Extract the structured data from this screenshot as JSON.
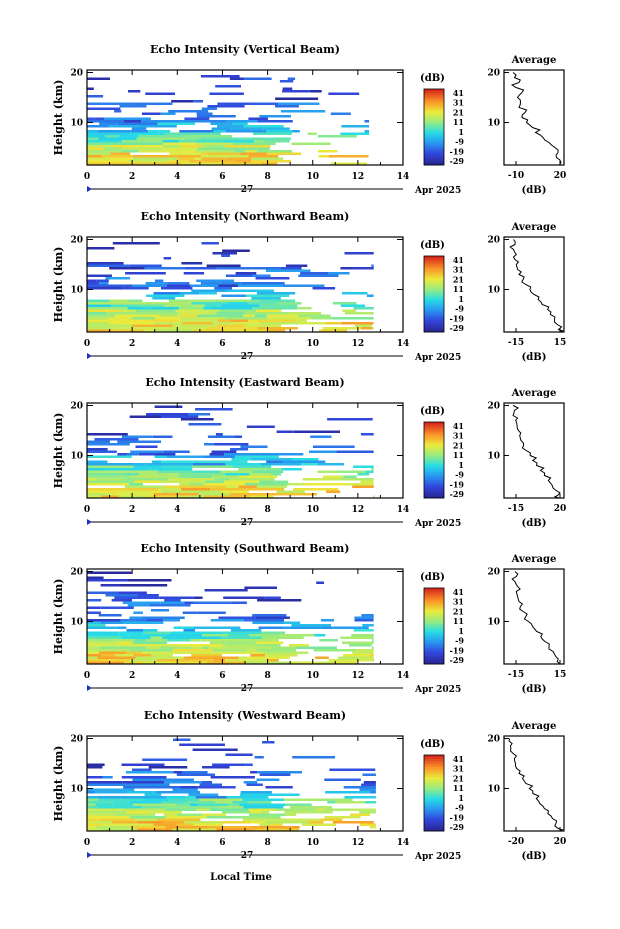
{
  "figure": {
    "x_axis_label": "Local Time",
    "date_suffix": "Apr 2025",
    "day_label": "27",
    "avg_xlabel": "(dB)",
    "avg_title": "Average"
  },
  "chart_data": [
    {
      "type": "heatmap",
      "title": "Echo Intensity (Vertical Beam)",
      "ylabel": "Height (km)",
      "xlabel": "Local Time",
      "xlim": [
        0,
        14
      ],
      "xticks": [
        "0",
        "2",
        "4",
        "6",
        "8",
        "10",
        "12",
        "14"
      ],
      "ylim": [
        1.5,
        20.5
      ],
      "yticks": [
        "10",
        "20"
      ],
      "colorbar": {
        "unit": "(dB)",
        "ticks": [
          "41",
          "31",
          "21",
          "11",
          "1",
          "-9",
          "-19",
          "-29"
        ],
        "range": [
          -29,
          41
        ]
      },
      "data_gaps_hours": [
        [
          9.3,
          9.7
        ],
        [
          11.3,
          12.1
        ],
        [
          12.5,
          14.0
        ]
      ],
      "data_end_hour": 12.5,
      "average": {
        "title": "Average",
        "xlabel": "(dB)",
        "xticks": [
          "-10",
          "20"
        ],
        "xlim": [
          -18,
          22
        ],
        "profile": [
          [
            1.5,
            19
          ],
          [
            2,
            20
          ],
          [
            3,
            17
          ],
          [
            4,
            18
          ],
          [
            5,
            16
          ],
          [
            6,
            12
          ],
          [
            7,
            8
          ],
          [
            8,
            3
          ],
          [
            9,
            1
          ],
          [
            10,
            -3
          ],
          [
            11,
            -6
          ],
          [
            12,
            -4
          ],
          [
            13,
            -8
          ],
          [
            14,
            -7
          ],
          [
            15,
            -9
          ],
          [
            16,
            -6
          ],
          [
            17,
            -10
          ],
          [
            18,
            -8
          ],
          [
            19,
            -11
          ],
          [
            20,
            -12
          ]
        ]
      }
    },
    {
      "type": "heatmap",
      "title": "Echo Intensity (Northward Beam)",
      "ylabel": "Height (km)",
      "xlabel": "Local Time",
      "xlim": [
        0,
        14
      ],
      "xticks": [
        "0",
        "2",
        "4",
        "6",
        "8",
        "10",
        "12",
        "14"
      ],
      "ylim": [
        1.5,
        20.5
      ],
      "yticks": [
        "10",
        "20"
      ],
      "colorbar": {
        "unit": "(dB)",
        "ticks": [
          "41",
          "31",
          "21",
          "11",
          "1",
          "-9",
          "-19",
          "-29"
        ],
        "range": [
          -29,
          41
        ]
      },
      "data_end_hour": 12.7,
      "average": {
        "title": "Average",
        "xlabel": "(dB)",
        "xticks": [
          "-15",
          "15"
        ],
        "xlim": [
          -22,
          22
        ],
        "profile": [
          [
            1.5,
            19
          ],
          [
            2,
            18
          ],
          [
            3,
            17
          ],
          [
            4,
            15
          ],
          [
            5,
            12
          ],
          [
            6,
            10
          ],
          [
            7,
            6
          ],
          [
            8,
            3
          ],
          [
            9,
            0
          ],
          [
            10,
            -3
          ],
          [
            11,
            -6
          ],
          [
            12,
            -8
          ],
          [
            13,
            -11
          ],
          [
            14,
            -12
          ],
          [
            15,
            -13
          ],
          [
            16,
            -14
          ],
          [
            17,
            -13
          ],
          [
            18,
            -15
          ],
          [
            19,
            -14
          ],
          [
            20,
            -15
          ]
        ]
      }
    },
    {
      "type": "heatmap",
      "title": "Echo Intensity (Eastward Beam)",
      "ylabel": "Height (km)",
      "xlabel": "Local Time",
      "xlim": [
        0,
        14
      ],
      "xticks": [
        "0",
        "2",
        "4",
        "6",
        "8",
        "10",
        "12",
        "14"
      ],
      "ylim": [
        1.5,
        20.5
      ],
      "yticks": [
        "10",
        "20"
      ],
      "colorbar": {
        "unit": "(dB)",
        "ticks": [
          "41",
          "31",
          "21",
          "11",
          "1",
          "-9",
          "-19",
          "-29"
        ],
        "range": [
          -29,
          41
        ]
      },
      "data_end_hour": 12.7,
      "average": {
        "title": "Average",
        "xlabel": "(dB)",
        "xticks": [
          "-15",
          "20"
        ],
        "xlim": [
          -22,
          24
        ],
        "profile": [
          [
            1.5,
            20
          ],
          [
            2,
            19
          ],
          [
            3,
            18
          ],
          [
            4,
            15
          ],
          [
            5,
            12
          ],
          [
            6,
            9
          ],
          [
            7,
            6
          ],
          [
            8,
            3
          ],
          [
            9,
            0
          ],
          [
            10,
            -2
          ],
          [
            11,
            -5
          ],
          [
            12,
            -7
          ],
          [
            13,
            -9
          ],
          [
            14,
            -10
          ],
          [
            15,
            -11
          ],
          [
            16,
            -12
          ],
          [
            17,
            -13
          ],
          [
            18,
            -15
          ],
          [
            19,
            -14
          ],
          [
            20,
            -15
          ]
        ]
      }
    },
    {
      "type": "heatmap",
      "title": "Echo Intensity (Southward Beam)",
      "ylabel": "Height (km)",
      "xlabel": "Local Time",
      "xlim": [
        0,
        14
      ],
      "xticks": [
        "0",
        "2",
        "4",
        "6",
        "8",
        "10",
        "12",
        "14"
      ],
      "ylim": [
        1.5,
        20.5
      ],
      "yticks": [
        "10",
        "20"
      ],
      "colorbar": {
        "unit": "(dB)",
        "ticks": [
          "41",
          "31",
          "21",
          "11",
          "1",
          "-9",
          "-19",
          "-29"
        ],
        "range": [
          -29,
          41
        ]
      },
      "data_end_hour": 12.7,
      "average": {
        "title": "Average",
        "xlabel": "(dB)",
        "xticks": [
          "-15",
          "15"
        ],
        "xlim": [
          -22,
          22
        ],
        "profile": [
          [
            1.5,
            18
          ],
          [
            2,
            17
          ],
          [
            3,
            16
          ],
          [
            4,
            14
          ],
          [
            5,
            11
          ],
          [
            6,
            8
          ],
          [
            7,
            5
          ],
          [
            8,
            2
          ],
          [
            9,
            -1
          ],
          [
            10,
            -4
          ],
          [
            11,
            -6
          ],
          [
            12,
            -8
          ],
          [
            13,
            -10
          ],
          [
            14,
            -11
          ],
          [
            15,
            -12
          ],
          [
            16,
            -13
          ],
          [
            17,
            -12
          ],
          [
            18,
            -14
          ],
          [
            19,
            -13
          ],
          [
            20,
            -14
          ]
        ]
      }
    },
    {
      "type": "heatmap",
      "title": "Echo Intensity (Westward Beam)",
      "ylabel": "Height (km)",
      "xlabel": "Local Time",
      "xlim": [
        0,
        14
      ],
      "xticks": [
        "0",
        "2",
        "4",
        "6",
        "8",
        "10",
        "12",
        "14"
      ],
      "ylim": [
        1.5,
        20.5
      ],
      "yticks": [
        "10",
        "20"
      ],
      "colorbar": {
        "unit": "(dB)",
        "ticks": [
          "41",
          "31",
          "21",
          "11",
          "1",
          "-9",
          "-19",
          "-29"
        ],
        "range": [
          -29,
          41
        ]
      },
      "data_end_hour": 12.8,
      "average": {
        "title": "Average",
        "xlabel": "(dB)",
        "xticks": [
          "-20",
          "20"
        ],
        "xlim": [
          -26,
          26
        ],
        "profile": [
          [
            1.5,
            22
          ],
          [
            2,
            21
          ],
          [
            3,
            19
          ],
          [
            4,
            16
          ],
          [
            5,
            12
          ],
          [
            6,
            9
          ],
          [
            7,
            5
          ],
          [
            8,
            2
          ],
          [
            9,
            -1
          ],
          [
            10,
            -4
          ],
          [
            11,
            -7
          ],
          [
            12,
            -10
          ],
          [
            13,
            -13
          ],
          [
            14,
            -15
          ],
          [
            15,
            -16
          ],
          [
            16,
            -17
          ],
          [
            17,
            -18
          ],
          [
            18,
            -20
          ],
          [
            19,
            -19
          ],
          [
            20,
            -21
          ]
        ]
      }
    }
  ]
}
